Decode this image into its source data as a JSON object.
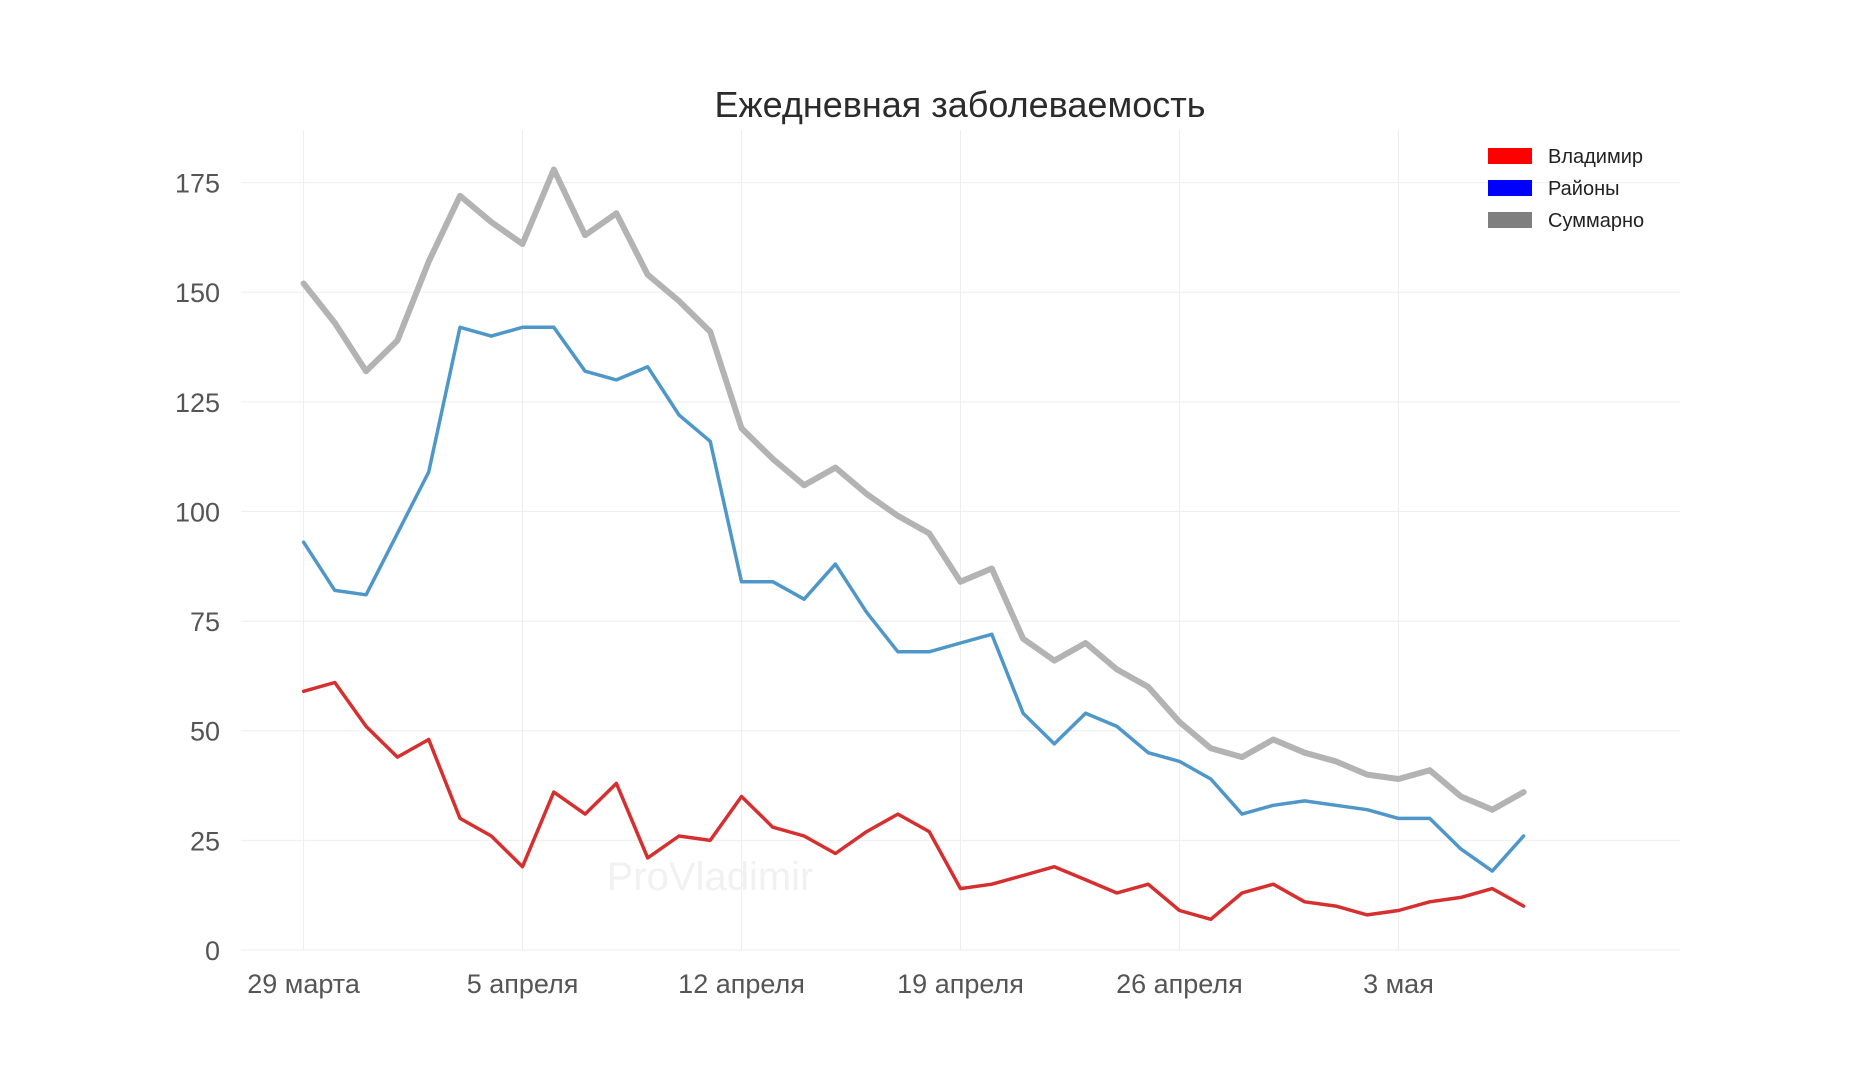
{
  "chart_data": {
    "type": "line",
    "title": "Ежедневная заболеваемость",
    "watermark": "ProVladimir",
    "xlabel": "",
    "ylabel": "",
    "ylim": [
      0,
      187
    ],
    "y_ticks": [
      0,
      25,
      50,
      75,
      100,
      125,
      150,
      175
    ],
    "x_range": [
      "2020-03-27",
      "2020-05-12"
    ],
    "x_ticks": [
      {
        "date": "2020-03-29",
        "label": "29 марта"
      },
      {
        "date": "2020-04-05",
        "label": "5 апреля"
      },
      {
        "date": "2020-04-12",
        "label": "12 апреля"
      },
      {
        "date": "2020-04-19",
        "label": "19 апреля"
      },
      {
        "date": "2020-04-26",
        "label": "26 апреля"
      },
      {
        "date": "2020-05-03",
        "label": "3 мая"
      }
    ],
    "grid": true,
    "legend_position": "top-right",
    "x": [
      "2020-03-29",
      "2020-03-30",
      "2020-03-31",
      "2020-04-01",
      "2020-04-02",
      "2020-04-03",
      "2020-04-04",
      "2020-04-05",
      "2020-04-06",
      "2020-04-07",
      "2020-04-08",
      "2020-04-09",
      "2020-04-10",
      "2020-04-11",
      "2020-04-12",
      "2020-04-13",
      "2020-04-14",
      "2020-04-15",
      "2020-04-16",
      "2020-04-17",
      "2020-04-18",
      "2020-04-19",
      "2020-04-20",
      "2020-04-21",
      "2020-04-22",
      "2020-04-23",
      "2020-04-24",
      "2020-04-25",
      "2020-04-26",
      "2020-04-27",
      "2020-04-28",
      "2020-04-29",
      "2020-04-30",
      "2020-05-01",
      "2020-05-02",
      "2020-05-03",
      "2020-05-04",
      "2020-05-05",
      "2020-05-06",
      "2020-05-07"
    ],
    "series": [
      {
        "name": "Суммарно",
        "legend_color": "#7f7f7f",
        "color": "#b3b3b3",
        "values": [
          152,
          143,
          132,
          139,
          157,
          172,
          166,
          161,
          178,
          163,
          168,
          154,
          148,
          141,
          119,
          112,
          106,
          110,
          104,
          99,
          95,
          84,
          87,
          71,
          66,
          70,
          64,
          60,
          52,
          46,
          44,
          48,
          45,
          43,
          40,
          39,
          41,
          35,
          32,
          36
        ]
      },
      {
        "name": "Районы",
        "legend_color": "#0000ff",
        "color": "#4f97c9",
        "values": [
          93,
          82,
          81,
          95,
          109,
          142,
          140,
          142,
          142,
          132,
          130,
          133,
          122,
          116,
          84,
          84,
          80,
          88,
          77,
          68,
          68,
          70,
          72,
          54,
          47,
          54,
          51,
          45,
          43,
          39,
          31,
          33,
          34,
          33,
          32,
          30,
          30,
          23,
          18,
          26
        ]
      },
      {
        "name": "Владимир",
        "legend_color": "#ff0000",
        "color": "#d62f2f",
        "values": [
          59,
          61,
          51,
          44,
          48,
          30,
          26,
          19,
          36,
          31,
          38,
          21,
          26,
          25,
          35,
          28,
          26,
          22,
          27,
          31,
          27,
          14,
          15,
          17,
          19,
          16,
          13,
          15,
          9,
          7,
          13,
          15,
          11,
          10,
          8,
          9,
          11,
          12,
          14,
          10
        ]
      }
    ],
    "legend_order": [
      "Владимир",
      "Районы",
      "Суммарно"
    ]
  }
}
